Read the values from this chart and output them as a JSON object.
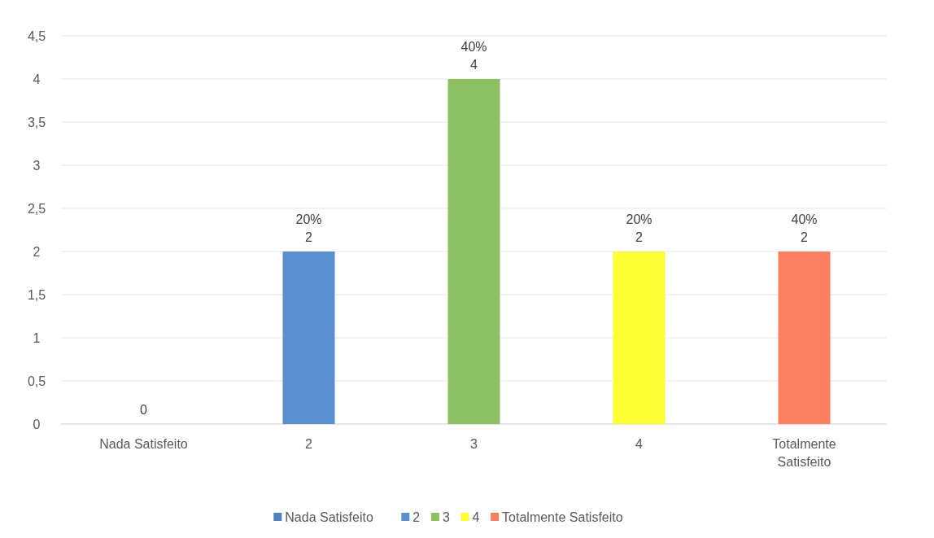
{
  "chart_data": {
    "type": "bar",
    "categories": [
      "Nada Satisfeito",
      "2",
      "3",
      "4",
      "Totalmente Satisfeito"
    ],
    "series": [
      {
        "name": "Nada Satisfeito",
        "color": "#4f81bd",
        "values": [
          0,
          null,
          null,
          null,
          null
        ],
        "value_labels": [
          "0",
          null,
          null,
          null,
          null
        ]
      },
      {
        "name": "2",
        "color": "#5b8fcf",
        "values": [
          null,
          2,
          null,
          null,
          null
        ],
        "value_labels": [
          null,
          "20%\n2",
          null,
          null,
          null
        ]
      },
      {
        "name": "3",
        "color": "#8cc063",
        "values": [
          null,
          null,
          4,
          null,
          null
        ],
        "value_labels": [
          null,
          null,
          "40%\n4",
          null,
          null
        ]
      },
      {
        "name": "4",
        "color": "#ffff33",
        "values": [
          null,
          null,
          null,
          2,
          null
        ],
        "value_labels": [
          null,
          null,
          null,
          "20%\n2",
          null
        ]
      },
      {
        "name": "Totalmente Satisfeito",
        "color": "#f98060",
        "values": [
          null,
          null,
          null,
          null,
          2
        ],
        "value_labels": [
          null,
          null,
          null,
          null,
          "40%\n2"
        ]
      }
    ],
    "ylim": [
      0,
      4.5
    ],
    "yticks": [
      0,
      {
        "value": 0.5,
        "label": "0,5"
      },
      1,
      {
        "value": 1.5,
        "label": "1,5"
      },
      2,
      {
        "value": 2.5,
        "label": "2,5"
      },
      3,
      {
        "value": 3.5,
        "label": "3,5"
      },
      4,
      {
        "value": 4.5,
        "label": "4,5"
      }
    ],
    "grid": "y",
    "legend": "bottom"
  }
}
